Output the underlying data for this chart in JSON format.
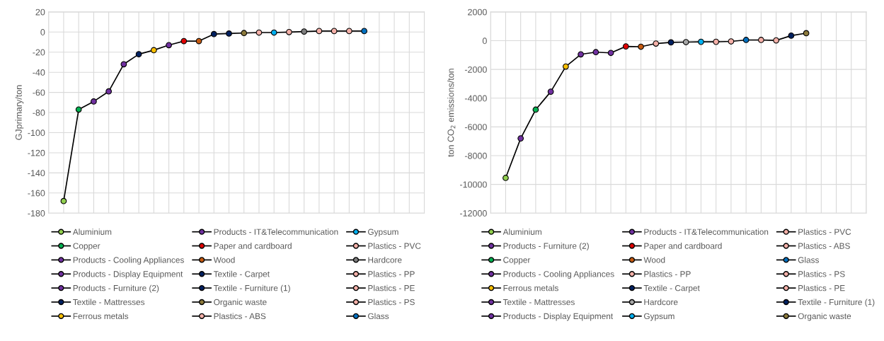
{
  "chart_data": [
    {
      "type": "line",
      "ylabel": "GJprimary/ton",
      "categories": [
        null,
        null,
        null,
        null,
        null,
        null,
        null,
        null,
        null,
        null,
        null,
        null,
        null,
        null,
        null,
        null,
        null,
        null,
        null,
        null,
        null
      ],
      "ylim": [
        -180,
        20
      ],
      "yticks": [
        -180,
        -160,
        -140,
        -120,
        -100,
        -80,
        -60,
        -40,
        -20,
        0,
        20
      ],
      "grid": true,
      "legend": "bottom",
      "series": [
        {
          "color": "#000000",
          "marker": "none",
          "values": [
            -168,
            -77,
            -69,
            -59,
            -32,
            -22,
            -18,
            -13,
            -9,
            -9,
            -2,
            -1.5,
            -1,
            -0.5,
            -0.5,
            0,
            0.5,
            1,
            1,
            1,
            1
          ]
        },
        {
          "name": "Aluminium",
          "color": "#92d050",
          "marker": "circle",
          "values": [
            -168,
            null,
            null,
            null,
            null,
            null,
            null,
            null,
            null,
            null,
            null,
            null,
            null,
            null,
            null,
            null,
            null,
            null,
            null,
            null,
            null
          ]
        },
        {
          "name": "Copper",
          "color": "#00b050",
          "marker": "circle",
          "values": [
            null,
            -77,
            null,
            null,
            null,
            null,
            null,
            null,
            null,
            null,
            null,
            null,
            null,
            null,
            null,
            null,
            null,
            null,
            null,
            null,
            null
          ]
        },
        {
          "name": "Products - Cooling Appliances",
          "color": "#7030a0",
          "marker": "circle",
          "values": [
            null,
            null,
            -69,
            null,
            null,
            null,
            null,
            null,
            null,
            null,
            null,
            null,
            null,
            null,
            null,
            null,
            null,
            null,
            null,
            null,
            null
          ]
        },
        {
          "name": "Products - Display Equipment",
          "color": "#7030a0",
          "marker": "circle",
          "values": [
            null,
            null,
            null,
            -59,
            null,
            null,
            null,
            null,
            null,
            null,
            null,
            null,
            null,
            null,
            null,
            null,
            null,
            null,
            null,
            null,
            null
          ]
        },
        {
          "name": "Products - Furniture (2)",
          "color": "#7030a0",
          "marker": "circle",
          "values": [
            null,
            null,
            null,
            null,
            -32,
            null,
            null,
            null,
            null,
            null,
            null,
            null,
            null,
            null,
            null,
            null,
            null,
            null,
            null,
            null,
            null
          ]
        },
        {
          "name": "Textile - Mattresses",
          "color": "#002060",
          "marker": "circle",
          "values": [
            null,
            null,
            null,
            null,
            null,
            -22,
            null,
            null,
            null,
            null,
            null,
            null,
            null,
            null,
            null,
            null,
            null,
            null,
            null,
            null,
            null
          ]
        },
        {
          "name": "Ferrous metals",
          "color": "#ffc000",
          "marker": "circle",
          "values": [
            null,
            null,
            null,
            null,
            null,
            null,
            -18,
            null,
            null,
            null,
            null,
            null,
            null,
            null,
            null,
            null,
            null,
            null,
            null,
            null,
            null
          ]
        },
        {
          "name": "Products - IT&Telecommunication",
          "color": "#7030a0",
          "marker": "circle",
          "values": [
            null,
            null,
            null,
            null,
            null,
            null,
            null,
            -13,
            null,
            null,
            null,
            null,
            null,
            null,
            null,
            null,
            null,
            null,
            null,
            null,
            null
          ]
        },
        {
          "name": "Paper and cardboard",
          "color": "#e00000",
          "marker": "circle",
          "values": [
            null,
            null,
            null,
            null,
            null,
            null,
            null,
            null,
            -9,
            null,
            null,
            null,
            null,
            null,
            null,
            null,
            null,
            null,
            null,
            null,
            null
          ]
        },
        {
          "name": "Wood",
          "color": "#c55a11",
          "marker": "circle",
          "values": [
            null,
            null,
            null,
            null,
            null,
            null,
            null,
            null,
            null,
            -9,
            null,
            null,
            null,
            null,
            null,
            null,
            null,
            null,
            null,
            null,
            null
          ]
        },
        {
          "name": "Textile - Carpet",
          "color": "#002060",
          "marker": "circle",
          "values": [
            null,
            null,
            null,
            null,
            null,
            null,
            null,
            null,
            null,
            null,
            -2,
            null,
            null,
            null,
            null,
            null,
            null,
            null,
            null,
            null,
            null
          ]
        },
        {
          "name": "Textile - Furniture (1)",
          "color": "#002060",
          "marker": "circle",
          "values": [
            null,
            null,
            null,
            null,
            null,
            null,
            null,
            null,
            null,
            null,
            null,
            -1.5,
            null,
            null,
            null,
            null,
            null,
            null,
            null,
            null,
            null
          ]
        },
        {
          "name": "Organic waste",
          "color": "#8c7a3c",
          "marker": "circle",
          "values": [
            null,
            null,
            null,
            null,
            null,
            null,
            null,
            null,
            null,
            null,
            null,
            null,
            -1,
            null,
            null,
            null,
            null,
            null,
            null,
            null,
            null
          ]
        },
        {
          "name": "Plastics - ABS",
          "color": "#f4b0a8",
          "marker": "circle",
          "values": [
            null,
            null,
            null,
            null,
            null,
            null,
            null,
            null,
            null,
            null,
            null,
            null,
            null,
            -0.5,
            null,
            null,
            null,
            null,
            null,
            null,
            null
          ]
        },
        {
          "name": "Gypsum",
          "color": "#00b0f0",
          "marker": "circle",
          "values": [
            null,
            null,
            null,
            null,
            null,
            null,
            null,
            null,
            null,
            null,
            null,
            null,
            null,
            null,
            -0.5,
            null,
            null,
            null,
            null,
            null,
            null
          ]
        },
        {
          "name": "Plastics - PVC",
          "color": "#f4b0a8",
          "marker": "circle",
          "values": [
            null,
            null,
            null,
            null,
            null,
            null,
            null,
            null,
            null,
            null,
            null,
            null,
            null,
            null,
            null,
            0,
            null,
            null,
            null,
            null,
            null
          ]
        },
        {
          "name": "Hardcore",
          "color": "#7f7f7f",
          "marker": "circle",
          "values": [
            null,
            null,
            null,
            null,
            null,
            null,
            null,
            null,
            null,
            null,
            null,
            null,
            null,
            null,
            null,
            null,
            0.5,
            null,
            null,
            null,
            null
          ]
        },
        {
          "name": "Plastics - PP",
          "color": "#f4b0a8",
          "marker": "circle",
          "values": [
            null,
            null,
            null,
            null,
            null,
            null,
            null,
            null,
            null,
            null,
            null,
            null,
            null,
            null,
            null,
            null,
            null,
            1,
            null,
            null,
            null
          ]
        },
        {
          "name": "Plastics - PE",
          "color": "#f4b0a8",
          "marker": "circle",
          "values": [
            null,
            null,
            null,
            null,
            null,
            null,
            null,
            null,
            null,
            null,
            null,
            null,
            null,
            null,
            null,
            null,
            null,
            null,
            1,
            null,
            null
          ]
        },
        {
          "name": "Plastics - PS",
          "color": "#f4b0a8",
          "marker": "circle",
          "values": [
            null,
            null,
            null,
            null,
            null,
            null,
            null,
            null,
            null,
            null,
            null,
            null,
            null,
            null,
            null,
            null,
            null,
            null,
            null,
            1,
            null
          ]
        },
        {
          "name": "Glass",
          "color": "#0070c0",
          "marker": "circle",
          "values": [
            null,
            null,
            null,
            null,
            null,
            null,
            null,
            null,
            null,
            null,
            null,
            null,
            null,
            null,
            null,
            null,
            null,
            null,
            null,
            null,
            1
          ]
        }
      ]
    },
    {
      "type": "line",
      "ylabel": "ton CO$_{2}$ emissions/ton",
      "categories": [
        null,
        null,
        null,
        null,
        null,
        null,
        null,
        null,
        null,
        null,
        null,
        null,
        null,
        null,
        null,
        null,
        null,
        null,
        null,
        null,
        null
      ],
      "ylim": [
        -12000,
        2000
      ],
      "yticks": [
        -12000,
        -10000,
        -8000,
        -6000,
        -4000,
        -2000,
        0,
        2000
      ],
      "grid": true,
      "legend": "bottom",
      "series": [
        {
          "color": "#000000",
          "marker": "none",
          "values": [
            -9550,
            -6800,
            -4800,
            -3550,
            -1800,
            -950,
            -800,
            -850,
            -400,
            -420,
            -200,
            -120,
            -100,
            -80,
            -80,
            -50,
            50,
            50,
            20,
            350,
            520
          ]
        },
        {
          "name": "Aluminium",
          "color": "#92d050",
          "marker": "circle",
          "values": [
            -9550,
            null,
            null,
            null,
            null,
            null,
            null,
            null,
            null,
            null,
            null,
            null,
            null,
            null,
            null,
            null,
            null,
            null,
            null,
            null,
            null
          ]
        },
        {
          "name": "Products - Furniture (2)",
          "color": "#7030a0",
          "marker": "circle",
          "values": [
            null,
            -6800,
            null,
            null,
            null,
            null,
            null,
            null,
            null,
            null,
            null,
            null,
            null,
            null,
            null,
            null,
            null,
            null,
            null,
            null,
            null
          ]
        },
        {
          "name": "Copper",
          "color": "#00b050",
          "marker": "circle",
          "values": [
            null,
            null,
            -4800,
            null,
            null,
            null,
            null,
            null,
            null,
            null,
            null,
            null,
            null,
            null,
            null,
            null,
            null,
            null,
            null,
            null,
            null
          ]
        },
        {
          "name": "Products - Cooling Appliances",
          "color": "#7030a0",
          "marker": "circle",
          "values": [
            null,
            null,
            null,
            -3550,
            null,
            null,
            null,
            null,
            null,
            null,
            null,
            null,
            null,
            null,
            null,
            null,
            null,
            null,
            null,
            null,
            null
          ]
        },
        {
          "name": "Ferrous metals",
          "color": "#ffc000",
          "marker": "circle",
          "values": [
            null,
            null,
            null,
            null,
            -1800,
            null,
            null,
            null,
            null,
            null,
            null,
            null,
            null,
            null,
            null,
            null,
            null,
            null,
            null,
            null,
            null
          ]
        },
        {
          "name": "Textile - Mattresses",
          "color": "#7030a0",
          "marker": "circle",
          "values": [
            null,
            null,
            null,
            null,
            null,
            -950,
            null,
            null,
            null,
            null,
            null,
            null,
            null,
            null,
            null,
            null,
            null,
            null,
            null,
            null,
            null
          ]
        },
        {
          "name": "Products - Display Equipment",
          "color": "#7030a0",
          "marker": "circle",
          "values": [
            null,
            null,
            null,
            null,
            null,
            null,
            -800,
            null,
            null,
            null,
            null,
            null,
            null,
            null,
            null,
            null,
            null,
            null,
            null,
            null,
            null
          ]
        },
        {
          "name": "Products - IT&Telecommunication",
          "color": "#7030a0",
          "marker": "circle",
          "values": [
            null,
            null,
            null,
            null,
            null,
            null,
            null,
            -850,
            null,
            null,
            null,
            null,
            null,
            null,
            null,
            null,
            null,
            null,
            null,
            null,
            null
          ]
        },
        {
          "name": "Paper and cardboard",
          "color": "#e00000",
          "marker": "circle",
          "values": [
            null,
            null,
            null,
            null,
            null,
            null,
            null,
            null,
            -400,
            null,
            null,
            null,
            null,
            null,
            null,
            null,
            null,
            null,
            null,
            null,
            null
          ]
        },
        {
          "name": "Wood",
          "color": "#c55a11",
          "marker": "circle",
          "values": [
            null,
            null,
            null,
            null,
            null,
            null,
            null,
            null,
            null,
            -420,
            null,
            null,
            null,
            null,
            null,
            null,
            null,
            null,
            null,
            null,
            null
          ]
        },
        {
          "name": "Plastics - PP",
          "color": "#f4b0a8",
          "marker": "circle",
          "values": [
            null,
            null,
            null,
            null,
            null,
            null,
            null,
            null,
            null,
            null,
            -200,
            null,
            null,
            null,
            null,
            null,
            null,
            null,
            null,
            null,
            null
          ]
        },
        {
          "name": "Textile - Carpet",
          "color": "#002060",
          "marker": "circle",
          "values": [
            null,
            null,
            null,
            null,
            null,
            null,
            null,
            null,
            null,
            null,
            null,
            -120,
            null,
            null,
            null,
            null,
            null,
            null,
            null,
            null,
            null
          ]
        },
        {
          "name": "Hardcore",
          "color": "#a6a6a6",
          "marker": "circle",
          "values": [
            null,
            null,
            null,
            null,
            null,
            null,
            null,
            null,
            null,
            null,
            null,
            null,
            -100,
            null,
            null,
            null,
            null,
            null,
            null,
            null,
            null
          ]
        },
        {
          "name": "Gypsum",
          "color": "#00b0f0",
          "marker": "circle",
          "values": [
            null,
            null,
            null,
            null,
            null,
            null,
            null,
            null,
            null,
            null,
            null,
            null,
            null,
            -80,
            null,
            null,
            null,
            null,
            null,
            null,
            null
          ]
        },
        {
          "name": "Plastics - PVC",
          "color": "#f4b0a8",
          "marker": "circle",
          "values": [
            null,
            null,
            null,
            null,
            null,
            null,
            null,
            null,
            null,
            null,
            null,
            null,
            null,
            null,
            -80,
            null,
            null,
            null,
            null,
            null,
            null
          ]
        },
        {
          "name": "Plastics - ABS",
          "color": "#f4b0a8",
          "marker": "circle",
          "values": [
            null,
            null,
            null,
            null,
            null,
            null,
            null,
            null,
            null,
            null,
            null,
            null,
            null,
            null,
            null,
            -50,
            null,
            null,
            null,
            null,
            null
          ]
        },
        {
          "name": "Glass",
          "color": "#0070c0",
          "marker": "circle",
          "values": [
            null,
            null,
            null,
            null,
            null,
            null,
            null,
            null,
            null,
            null,
            null,
            null,
            null,
            null,
            null,
            null,
            50,
            null,
            null,
            null,
            null
          ]
        },
        {
          "name": "Plastics - PS",
          "color": "#f4b0a8",
          "marker": "circle",
          "values": [
            null,
            null,
            null,
            null,
            null,
            null,
            null,
            null,
            null,
            null,
            null,
            null,
            null,
            null,
            null,
            null,
            null,
            50,
            null,
            null,
            null
          ]
        },
        {
          "name": "Plastics - PE",
          "color": "#f4b0a8",
          "marker": "circle",
          "values": [
            null,
            null,
            null,
            null,
            null,
            null,
            null,
            null,
            null,
            null,
            null,
            null,
            null,
            null,
            null,
            null,
            null,
            null,
            20,
            null,
            null
          ]
        },
        {
          "name": "Textile - Furniture (1)",
          "color": "#002060",
          "marker": "circle",
          "values": [
            null,
            null,
            null,
            null,
            null,
            null,
            null,
            null,
            null,
            null,
            null,
            null,
            null,
            null,
            null,
            null,
            null,
            null,
            null,
            350,
            null
          ]
        },
        {
          "name": "Organic waste",
          "color": "#8c7a3c",
          "marker": "circle",
          "values": [
            null,
            null,
            null,
            null,
            null,
            null,
            null,
            null,
            null,
            null,
            null,
            null,
            null,
            null,
            null,
            null,
            null,
            null,
            null,
            null,
            520
          ]
        }
      ]
    }
  ]
}
